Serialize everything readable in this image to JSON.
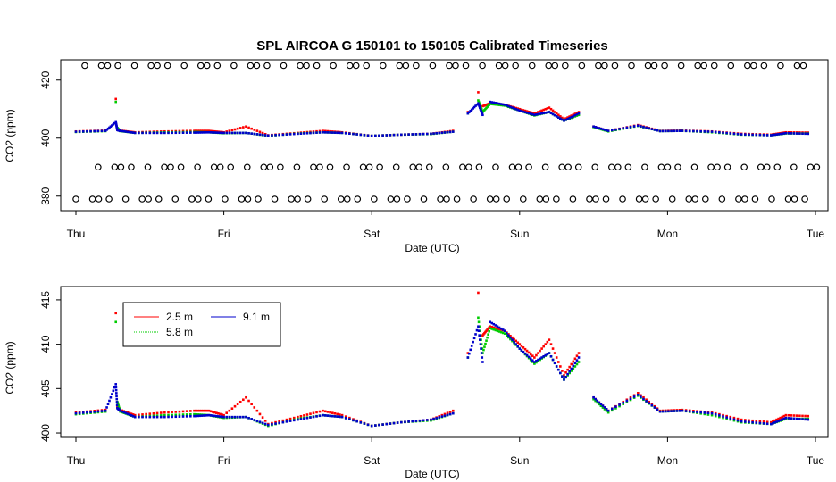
{
  "chart_data": [
    {
      "type": "scatter",
      "title": "SPL   AIRCOA  G    150101  to  150105   Calibrated Timeseries",
      "xlabel": "Date (UTC)",
      "ylabel": "CO2 (ppm)",
      "x_ticks": [
        "Thu",
        "Fri",
        "Sat",
        "Sun",
        "Mon",
        "Tue"
      ],
      "x_range": [
        0,
        5
      ],
      "ylim": [
        375,
        427
      ],
      "y_ticks": [
        380,
        400,
        420
      ],
      "y_ticks_text": [
        "380",
        "400",
        "420"
      ],
      "grid": false,
      "reference_markers": [
        {
          "name": "upper reference",
          "marker": "open-circle",
          "y": 425
        },
        {
          "name": "middle reference",
          "marker": "open-circle",
          "y": 390
        },
        {
          "name": "lower reference",
          "marker": "open-circle",
          "y": 379
        }
      ],
      "series": [
        {
          "color": "#ff0000",
          "x": [
            0,
            0.2,
            0.27,
            0.28,
            0.3,
            0.4,
            0.6,
            0.8,
            0.9,
            1.0,
            1.15,
            1.3,
            1.5,
            1.67,
            1.8,
            2.0,
            2.2,
            2.4,
            2.55,
            2.65,
            2.72,
            2.75,
            2.8,
            2.9,
            3.0,
            3.1,
            3.2,
            3.3,
            3.4,
            3.5,
            3.6,
            3.8,
            3.95,
            4.1,
            4.3,
            4.5,
            4.7,
            4.8,
            4.95
          ],
          "y": [
            402.3,
            402.6,
            413.5,
            403.0,
            402.6,
            402.0,
            402.3,
            402.5,
            402.5,
            402.0,
            404.0,
            401.0,
            401.8,
            402.5,
            402.0,
            400.8,
            401.2,
            401.5,
            402.5,
            409.0,
            415.8,
            411.0,
            412.0,
            411.5,
            410.0,
            408.5,
            410.5,
            406.5,
            409.0,
            404.0,
            402.5,
            404.5,
            402.5,
            402.6,
            402.3,
            401.5,
            401.2,
            402.0,
            401.9
          ]
        },
        {
          "color": "#00cc00",
          "x": [
            0,
            0.2,
            0.27,
            0.28,
            0.3,
            0.4,
            0.6,
            0.8,
            0.9,
            1.0,
            1.15,
            1.3,
            1.5,
            1.67,
            1.8,
            2.0,
            2.2,
            2.4,
            2.55,
            2.65,
            2.72,
            2.75,
            2.8,
            2.9,
            3.0,
            3.1,
            3.2,
            3.3,
            3.4,
            3.5,
            3.6,
            3.8,
            3.95,
            4.1,
            4.3,
            4.5,
            4.7,
            4.8,
            4.95
          ],
          "y": [
            402.1,
            402.4,
            412.5,
            403.5,
            402.4,
            401.8,
            402.0,
            402.1,
            402.0,
            401.7,
            401.8,
            400.8,
            401.6,
            402.0,
            401.8,
            400.8,
            401.2,
            401.4,
            402.2,
            408.5,
            413.0,
            409.0,
            411.8,
            411.2,
            409.5,
            407.8,
            409.0,
            406.0,
            408.0,
            403.8,
            402.3,
            404.2,
            402.4,
            402.5,
            402.0,
            401.2,
            401.0,
            401.6,
            401.6
          ]
        },
        {
          "color": "#0000cc",
          "x": [
            0,
            0.2,
            0.27,
            0.28,
            0.3,
            0.4,
            0.6,
            0.8,
            0.9,
            1.0,
            1.15,
            1.3,
            1.5,
            1.67,
            1.8,
            2.0,
            2.2,
            2.4,
            2.55,
            2.65,
            2.72,
            2.75,
            2.8,
            2.9,
            3.0,
            3.1,
            3.2,
            3.3,
            3.4,
            3.5,
            3.6,
            3.8,
            3.95,
            4.1,
            4.3,
            4.5,
            4.7,
            4.8,
            4.95
          ],
          "y": [
            402.2,
            402.5,
            405.5,
            402.8,
            402.5,
            401.8,
            401.8,
            401.9,
            402.0,
            401.8,
            401.8,
            400.9,
            401.5,
            402.0,
            401.8,
            400.8,
            401.2,
            401.5,
            402.2,
            408.5,
            412.0,
            408.0,
            412.5,
            411.5,
            409.5,
            408.0,
            409.0,
            406.0,
            408.5,
            404.0,
            402.5,
            404.3,
            402.4,
            402.5,
            402.2,
            401.3,
            401.0,
            401.7,
            401.5
          ]
        }
      ]
    },
    {
      "type": "scatter",
      "xlabel": "Date (UTC)",
      "ylabel": "CO2 (ppm)",
      "x_ticks": [
        "Thu",
        "Fri",
        "Sat",
        "Sun",
        "Mon",
        "Tue"
      ],
      "x_range": [
        0,
        5
      ],
      "ylim": [
        399.5,
        416.5
      ],
      "y_ticks": [
        400,
        405,
        410,
        415
      ],
      "y_ticks_text": [
        "400",
        "405",
        "410",
        "415"
      ],
      "grid": false,
      "legend": {
        "position": "top-left",
        "entries": [
          {
            "label": "2.5 m",
            "color": "#ff0000"
          },
          {
            "label": "9.1 m",
            "color": "#0000cc"
          },
          {
            "label": "5.8 m",
            "color": "#00cc00"
          }
        ]
      },
      "series": [
        {
          "name": "2.5 m",
          "color": "#ff0000",
          "x": [
            0,
            0.2,
            0.27,
            0.28,
            0.3,
            0.4,
            0.6,
            0.8,
            0.9,
            1.0,
            1.15,
            1.3,
            1.5,
            1.67,
            1.8,
            2.0,
            2.2,
            2.4,
            2.55,
            2.65,
            2.72,
            2.75,
            2.8,
            2.9,
            3.0,
            3.1,
            3.2,
            3.3,
            3.4,
            3.5,
            3.6,
            3.8,
            3.95,
            4.1,
            4.3,
            4.5,
            4.7,
            4.8,
            4.95
          ],
          "y": [
            402.3,
            402.6,
            413.5,
            403.0,
            402.6,
            402.0,
            402.3,
            402.5,
            402.5,
            402.0,
            404.0,
            401.0,
            401.8,
            402.5,
            402.0,
            400.8,
            401.2,
            401.5,
            402.5,
            409.0,
            415.8,
            411.0,
            412.0,
            411.5,
            410.0,
            408.5,
            410.5,
            406.5,
            409.0,
            404.0,
            402.5,
            404.5,
            402.5,
            402.6,
            402.3,
            401.5,
            401.2,
            402.0,
            401.9
          ]
        },
        {
          "name": "5.8 m",
          "color": "#00cc00",
          "x": [
            0,
            0.2,
            0.27,
            0.28,
            0.3,
            0.4,
            0.6,
            0.8,
            0.9,
            1.0,
            1.15,
            1.3,
            1.5,
            1.67,
            1.8,
            2.0,
            2.2,
            2.4,
            2.55,
            2.65,
            2.72,
            2.75,
            2.8,
            2.9,
            3.0,
            3.1,
            3.2,
            3.3,
            3.4,
            3.5,
            3.6,
            3.8,
            3.95,
            4.1,
            4.3,
            4.5,
            4.7,
            4.8,
            4.95
          ],
          "y": [
            402.1,
            402.4,
            412.5,
            403.5,
            402.4,
            401.8,
            402.0,
            402.1,
            402.0,
            401.7,
            401.8,
            400.8,
            401.6,
            402.0,
            401.8,
            400.8,
            401.2,
            401.4,
            402.2,
            408.5,
            413.0,
            409.0,
            411.8,
            411.2,
            409.5,
            407.8,
            409.0,
            406.0,
            408.0,
            403.8,
            402.3,
            404.2,
            402.4,
            402.5,
            402.0,
            401.2,
            401.0,
            401.6,
            401.6
          ]
        },
        {
          "name": "9.1 m",
          "color": "#0000cc",
          "x": [
            0,
            0.2,
            0.27,
            0.28,
            0.3,
            0.4,
            0.6,
            0.8,
            0.9,
            1.0,
            1.15,
            1.3,
            1.5,
            1.67,
            1.8,
            2.0,
            2.2,
            2.4,
            2.55,
            2.65,
            2.72,
            2.75,
            2.8,
            2.9,
            3.0,
            3.1,
            3.2,
            3.3,
            3.4,
            3.5,
            3.6,
            3.8,
            3.95,
            4.1,
            4.3,
            4.5,
            4.7,
            4.8,
            4.95
          ],
          "y": [
            402.2,
            402.5,
            405.5,
            402.8,
            402.5,
            401.8,
            401.8,
            401.9,
            402.0,
            401.8,
            401.8,
            400.9,
            401.5,
            402.0,
            401.8,
            400.8,
            401.2,
            401.5,
            402.2,
            408.5,
            412.0,
            408.0,
            412.5,
            411.5,
            409.5,
            408.0,
            409.0,
            406.0,
            408.5,
            404.0,
            402.5,
            404.3,
            402.4,
            402.5,
            402.2,
            401.3,
            401.0,
            401.7,
            401.5
          ]
        }
      ]
    }
  ]
}
